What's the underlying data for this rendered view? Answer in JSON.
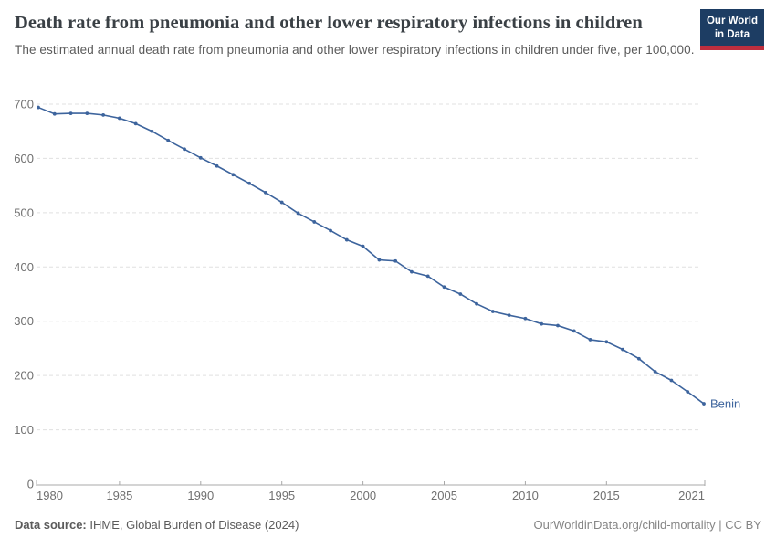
{
  "header": {
    "title": "Death rate from pneumonia and other lower respiratory infections in children",
    "subtitle": "The estimated annual death rate from pneumonia and other lower respiratory infections in children under five, per 100,000.",
    "logo": {
      "line1": "Our World",
      "line2": "in Data"
    }
  },
  "chart_data": {
    "type": "line",
    "title": "Death rate from pneumonia and other lower respiratory infections in children",
    "subtitle": "The estimated annual death rate from pneumonia and other lower respiratory infections in children under five, per 100,000.",
    "xlabel": "",
    "ylabel": "",
    "ylim": [
      0,
      700
    ],
    "yticks": [
      0,
      100,
      200,
      300,
      400,
      500,
      600,
      700
    ],
    "xticks": [
      1980,
      1985,
      1990,
      1995,
      2000,
      2005,
      2010,
      2015,
      2021
    ],
    "grid": "horizontal-dashed",
    "legend_position": "end-of-line-label",
    "colors": {
      "line": "#3d649d"
    },
    "series": [
      {
        "name": "Benin",
        "x": [
          1980,
          1981,
          1982,
          1983,
          1984,
          1985,
          1986,
          1987,
          1988,
          1989,
          1990,
          1991,
          1992,
          1993,
          1994,
          1995,
          1996,
          1997,
          1998,
          1999,
          2000,
          2001,
          2002,
          2003,
          2004,
          2005,
          2006,
          2007,
          2008,
          2009,
          2010,
          2011,
          2012,
          2013,
          2014,
          2015,
          2016,
          2017,
          2018,
          2019,
          2020,
          2021
        ],
        "values": [
          694,
          682,
          683,
          683,
          680,
          674,
          664,
          650,
          633,
          617,
          601,
          586,
          570,
          554,
          537,
          519,
          499,
          483,
          467,
          450,
          438,
          413,
          411,
          391,
          383,
          363,
          350,
          332,
          318,
          311,
          305,
          295,
          292,
          282,
          266,
          262,
          248,
          231,
          207,
          191,
          170,
          148
        ]
      }
    ]
  },
  "footer": {
    "source_label": "Data source:",
    "source_text": " IHME, Global Burden of Disease (2024)",
    "credit": "OurWorldinData.org/child-mortality | CC BY"
  }
}
